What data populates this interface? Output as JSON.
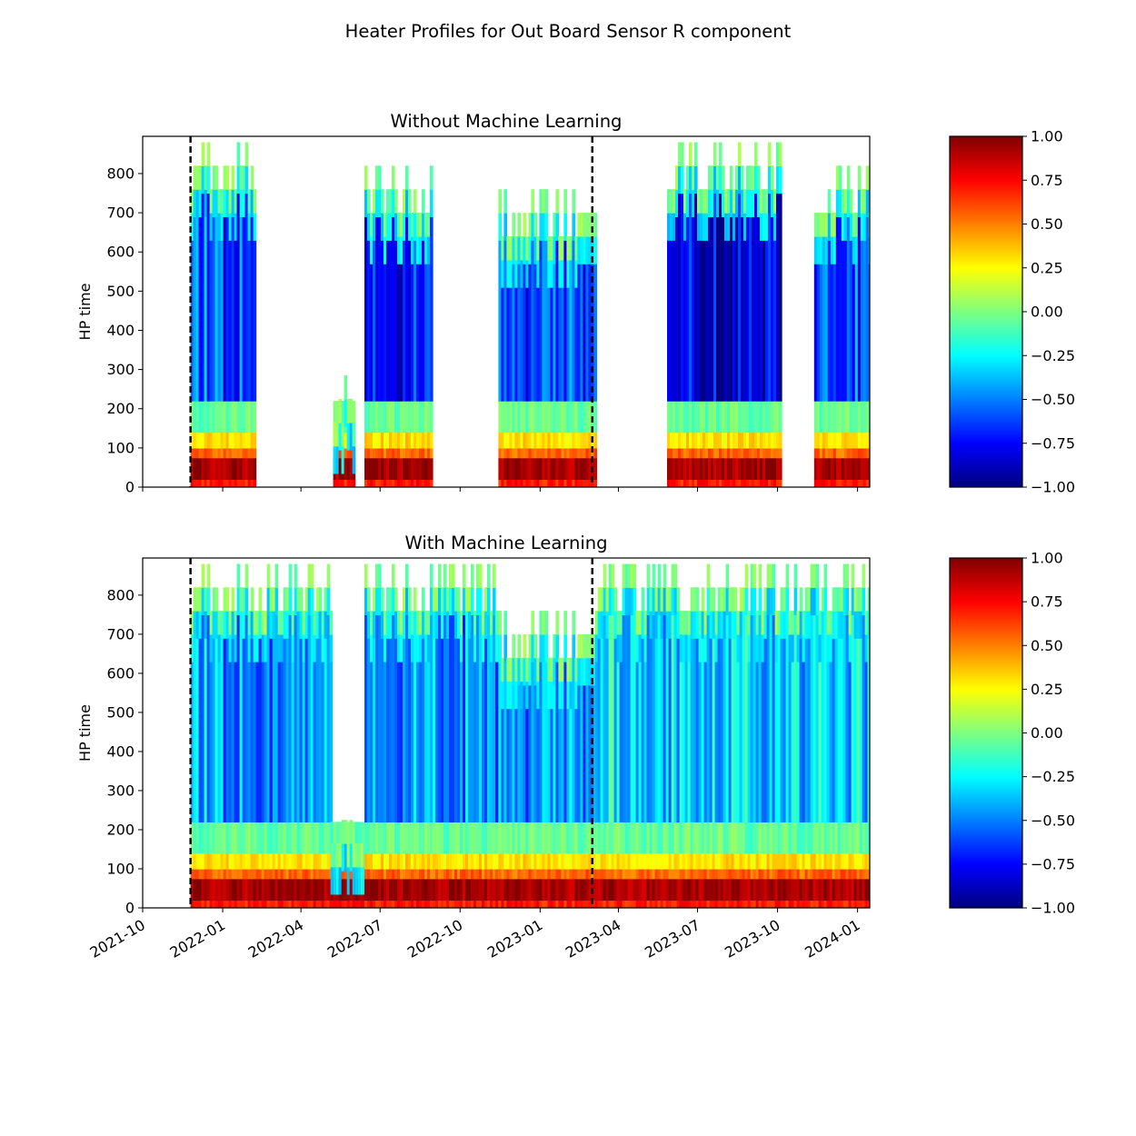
{
  "suptitle": "Heater Profiles for Out Board Sensor R component",
  "colors": {
    "jet": [
      "#00007f",
      "#0000ff",
      "#007fff",
      "#00ffff",
      "#7fff7f",
      "#ffff00",
      "#ff7f00",
      "#ff0000",
      "#7f0000"
    ],
    "marker_line": "#000000"
  },
  "chart_data": [
    {
      "type": "heatmap",
      "title": "Without Machine Learning",
      "xlabel": "",
      "ylabel": "HP time",
      "xlim": [
        "2021-10-01",
        "2024-01-15"
      ],
      "ylim": [
        0,
        895
      ],
      "y_ticks": [
        "0",
        "100",
        "200",
        "300",
        "400",
        "500",
        "600",
        "700",
        "800"
      ],
      "x_ticks_dates": [
        "2021-10-01",
        "2022-01-01",
        "2022-04-01",
        "2022-07-01",
        "2022-10-01",
        "2023-01-01",
        "2023-04-01",
        "2023-07-01",
        "2023-10-01",
        "2024-01-01"
      ],
      "x_ticklabels_shown": false,
      "dashed_vlines": [
        "2021-11-25",
        "2023-03-02"
      ],
      "colorbar": {
        "vmin": -1.0,
        "vmax": 1.0,
        "tick_values": [
          1.0,
          0.75,
          0.5,
          0.25,
          0.0,
          -0.25,
          -0.5,
          -0.75,
          -1.0
        ],
        "tick_labels": [
          "1.00",
          "0.75",
          "0.50",
          "0.25",
          "0.00",
          "−0.25",
          "−0.50",
          "−0.75",
          "−1.00"
        ]
      },
      "data_segments": [
        {
          "start": "2021-11-25",
          "end": "2022-02-07",
          "max_hp": 880,
          "mid_value": -0.6
        },
        {
          "start": "2022-05-08",
          "end": "2022-06-01",
          "max_hp": 285,
          "mid_value": -0.1
        },
        {
          "start": "2022-06-13",
          "end": "2022-08-29",
          "max_hp": 820,
          "mid_value": -0.7
        },
        {
          "start": "2022-11-14",
          "end": "2023-03-05",
          "max_hp": 760,
          "mid_value": -0.6
        },
        {
          "start": "2023-05-27",
          "end": "2023-10-05",
          "max_hp": 880,
          "mid_value": -0.85
        },
        {
          "start": "2023-11-12",
          "end": "2024-01-15",
          "max_hp": 820,
          "mid_value": -0.6
        }
      ]
    },
    {
      "type": "heatmap",
      "title": "With Machine Learning",
      "xlabel": "",
      "ylabel": "HP time",
      "xlim": [
        "2021-10-01",
        "2024-01-15"
      ],
      "ylim": [
        0,
        895
      ],
      "y_ticks": [
        "0",
        "100",
        "200",
        "300",
        "400",
        "500",
        "600",
        "700",
        "800"
      ],
      "x_ticks_dates": [
        "2021-10-01",
        "2022-01-01",
        "2022-04-01",
        "2022-07-01",
        "2022-10-01",
        "2023-01-01",
        "2023-04-01",
        "2023-07-01",
        "2023-10-01",
        "2024-01-01"
      ],
      "x_ticklabels": [
        "2021-10",
        "2022-01",
        "2022-04",
        "2022-07",
        "2022-10",
        "2023-01",
        "2023-04",
        "2023-07",
        "2023-10",
        "2024-01"
      ],
      "x_ticklabels_shown": true,
      "dashed_vlines": [
        "2021-11-25",
        "2023-03-02"
      ],
      "colorbar": {
        "vmin": -1.0,
        "vmax": 1.0,
        "tick_values": [
          1.0,
          0.75,
          0.5,
          0.25,
          0.0,
          -0.25,
          -0.5,
          -0.75,
          -1.0
        ],
        "tick_labels": [
          "1.00",
          "0.75",
          "0.50",
          "0.25",
          "0.00",
          "−0.25",
          "−0.50",
          "−0.75",
          "−1.00"
        ]
      },
      "data_segments": [
        {
          "start": "2021-11-25",
          "end": "2022-05-05",
          "max_hp": 880,
          "mid_value": -0.45
        },
        {
          "start": "2022-05-05",
          "end": "2022-06-13",
          "max_hp": 285,
          "mid_value": 0.05
        },
        {
          "start": "2022-06-13",
          "end": "2022-11-14",
          "max_hp": 880,
          "mid_value": -0.45
        },
        {
          "start": "2022-11-14",
          "end": "2023-03-05",
          "max_hp": 760,
          "mid_value": -0.45
        },
        {
          "start": "2023-03-05",
          "end": "2024-01-15",
          "max_hp": 880,
          "mid_value": -0.35
        }
      ]
    }
  ]
}
